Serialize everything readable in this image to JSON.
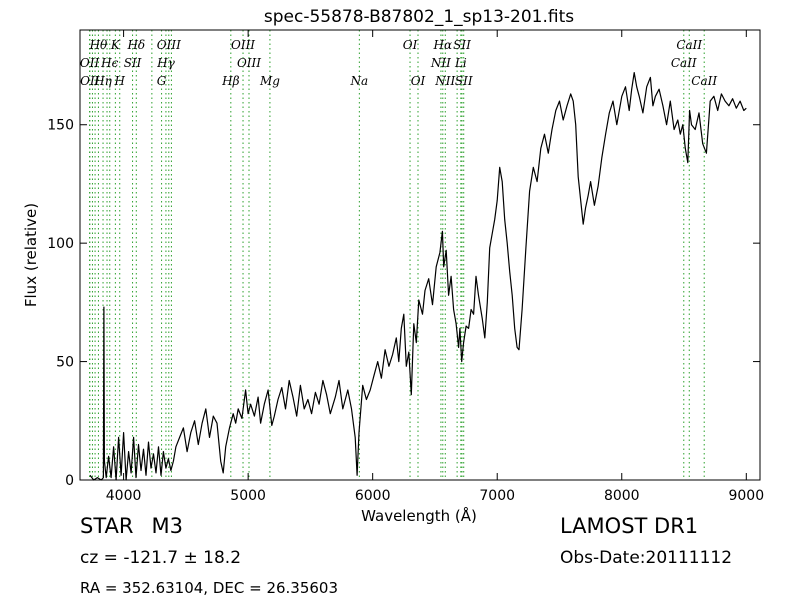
{
  "chart_data": {
    "type": "line",
    "title": "spec-55878-B87802_1_sp13-201.fits",
    "xlabel": "Wavelength (Å)",
    "ylabel": "Flux (relative)",
    "xlim": [
      3650,
      9110
    ],
    "ylim": [
      0,
      190
    ],
    "x_ticks": [
      4000,
      5000,
      6000,
      7000,
      8000,
      9000
    ],
    "y_ticks": [
      0,
      50,
      100,
      150
    ],
    "grid": false,
    "legend": "none",
    "series": [
      {
        "color": "#000000",
        "points": [
          [
            3730,
            2
          ],
          [
            3760,
            0
          ],
          [
            3790,
            1
          ],
          [
            3820,
            0
          ],
          [
            3838,
            1
          ],
          [
            3842,
            73
          ],
          [
            3846,
            8
          ],
          [
            3860,
            1
          ],
          [
            3880,
            10
          ],
          [
            3900,
            1
          ],
          [
            3920,
            14
          ],
          [
            3940,
            0
          ],
          [
            3960,
            18
          ],
          [
            3980,
            2
          ],
          [
            4000,
            20
          ],
          [
            4020,
            0
          ],
          [
            4040,
            12
          ],
          [
            4060,
            3
          ],
          [
            4080,
            18
          ],
          [
            4100,
            1
          ],
          [
            4120,
            15
          ],
          [
            4140,
            4
          ],
          [
            4160,
            13
          ],
          [
            4180,
            2
          ],
          [
            4200,
            16
          ],
          [
            4220,
            5
          ],
          [
            4240,
            11
          ],
          [
            4260,
            3
          ],
          [
            4280,
            14
          ],
          [
            4300,
            2
          ],
          [
            4320,
            12
          ],
          [
            4340,
            5
          ],
          [
            4360,
            9
          ],
          [
            4380,
            4
          ],
          [
            4400,
            8
          ],
          [
            4420,
            14
          ],
          [
            4450,
            18
          ],
          [
            4480,
            22
          ],
          [
            4510,
            12
          ],
          [
            4540,
            20
          ],
          [
            4570,
            25
          ],
          [
            4600,
            15
          ],
          [
            4630,
            24
          ],
          [
            4660,
            30
          ],
          [
            4690,
            18
          ],
          [
            4720,
            27
          ],
          [
            4750,
            24
          ],
          [
            4780,
            8
          ],
          [
            4800,
            3
          ],
          [
            4820,
            14
          ],
          [
            4850,
            22
          ],
          [
            4880,
            28
          ],
          [
            4900,
            24
          ],
          [
            4920,
            30
          ],
          [
            4950,
            26
          ],
          [
            4980,
            38
          ],
          [
            5000,
            28
          ],
          [
            5020,
            32
          ],
          [
            5050,
            27
          ],
          [
            5080,
            35
          ],
          [
            5100,
            24
          ],
          [
            5130,
            32
          ],
          [
            5160,
            38
          ],
          [
            5190,
            23
          ],
          [
            5210,
            27
          ],
          [
            5240,
            34
          ],
          [
            5270,
            39
          ],
          [
            5300,
            30
          ],
          [
            5330,
            42
          ],
          [
            5360,
            35
          ],
          [
            5390,
            27
          ],
          [
            5420,
            40
          ],
          [
            5450,
            30
          ],
          [
            5480,
            34
          ],
          [
            5510,
            28
          ],
          [
            5540,
            37
          ],
          [
            5570,
            32
          ],
          [
            5600,
            42
          ],
          [
            5630,
            36
          ],
          [
            5660,
            28
          ],
          [
            5700,
            35
          ],
          [
            5730,
            42
          ],
          [
            5760,
            30
          ],
          [
            5800,
            38
          ],
          [
            5830,
            30
          ],
          [
            5860,
            18
          ],
          [
            5875,
            2
          ],
          [
            5890,
            20
          ],
          [
            5920,
            40
          ],
          [
            5950,
            34
          ],
          [
            5980,
            38
          ],
          [
            6010,
            44
          ],
          [
            6040,
            50
          ],
          [
            6070,
            43
          ],
          [
            6100,
            55
          ],
          [
            6130,
            48
          ],
          [
            6160,
            53
          ],
          [
            6190,
            60
          ],
          [
            6210,
            50
          ],
          [
            6230,
            64
          ],
          [
            6250,
            70
          ],
          [
            6270,
            48
          ],
          [
            6290,
            54
          ],
          [
            6310,
            36
          ],
          [
            6330,
            66
          ],
          [
            6350,
            58
          ],
          [
            6370,
            76
          ],
          [
            6400,
            70
          ],
          [
            6420,
            80
          ],
          [
            6450,
            85
          ],
          [
            6480,
            74
          ],
          [
            6510,
            90
          ],
          [
            6540,
            96
          ],
          [
            6560,
            105
          ],
          [
            6570,
            90
          ],
          [
            6590,
            97
          ],
          [
            6610,
            78
          ],
          [
            6630,
            86
          ],
          [
            6650,
            72
          ],
          [
            6670,
            66
          ],
          [
            6690,
            56
          ],
          [
            6700,
            64
          ],
          [
            6715,
            50
          ],
          [
            6730,
            58
          ],
          [
            6750,
            65
          ],
          [
            6770,
            64
          ],
          [
            6790,
            72
          ],
          [
            6810,
            70
          ],
          [
            6830,
            86
          ],
          [
            6850,
            78
          ],
          [
            6880,
            68
          ],
          [
            6900,
            60
          ],
          [
            6920,
            75
          ],
          [
            6940,
            98
          ],
          [
            6960,
            104
          ],
          [
            6980,
            110
          ],
          [
            7000,
            118
          ],
          [
            7020,
            132
          ],
          [
            7040,
            126
          ],
          [
            7060,
            110
          ],
          [
            7080,
            100
          ],
          [
            7100,
            88
          ],
          [
            7120,
            78
          ],
          [
            7140,
            64
          ],
          [
            7160,
            56
          ],
          [
            7175,
            55
          ],
          [
            7200,
            72
          ],
          [
            7230,
            98
          ],
          [
            7260,
            122
          ],
          [
            7290,
            132
          ],
          [
            7320,
            126
          ],
          [
            7350,
            140
          ],
          [
            7380,
            146
          ],
          [
            7410,
            138
          ],
          [
            7440,
            148
          ],
          [
            7470,
            156
          ],
          [
            7500,
            160
          ],
          [
            7530,
            152
          ],
          [
            7560,
            158
          ],
          [
            7590,
            163
          ],
          [
            7610,
            160
          ],
          [
            7630,
            150
          ],
          [
            7650,
            128
          ],
          [
            7670,
            118
          ],
          [
            7690,
            108
          ],
          [
            7710,
            115
          ],
          [
            7730,
            120
          ],
          [
            7750,
            126
          ],
          [
            7780,
            116
          ],
          [
            7810,
            124
          ],
          [
            7840,
            136
          ],
          [
            7870,
            146
          ],
          [
            7900,
            155
          ],
          [
            7930,
            160
          ],
          [
            7960,
            150
          ],
          [
            8000,
            162
          ],
          [
            8030,
            166
          ],
          [
            8060,
            156
          ],
          [
            8080,
            165
          ],
          [
            8100,
            172
          ],
          [
            8120,
            166
          ],
          [
            8140,
            162
          ],
          [
            8170,
            155
          ],
          [
            8200,
            166
          ],
          [
            8230,
            170
          ],
          [
            8250,
            158
          ],
          [
            8270,
            162
          ],
          [
            8300,
            165
          ],
          [
            8330,
            158
          ],
          [
            8360,
            150
          ],
          [
            8390,
            160
          ],
          [
            8420,
            148
          ],
          [
            8450,
            152
          ],
          [
            8470,
            146
          ],
          [
            8490,
            150
          ],
          [
            8510,
            140
          ],
          [
            8530,
            134
          ],
          [
            8545,
            156
          ],
          [
            8560,
            150
          ],
          [
            8590,
            148
          ],
          [
            8620,
            155
          ],
          [
            8650,
            142
          ],
          [
            8680,
            138
          ],
          [
            8710,
            160
          ],
          [
            8740,
            162
          ],
          [
            8770,
            156
          ],
          [
            8800,
            163
          ],
          [
            8830,
            160
          ],
          [
            8860,
            158
          ],
          [
            8890,
            161
          ],
          [
            8920,
            157
          ],
          [
            8950,
            160
          ],
          [
            8980,
            156
          ],
          [
            9000,
            157
          ]
        ]
      }
    ],
    "line_color": "#2ca02c",
    "lines": [
      {
        "label": "Hθ",
        "x": 3798,
        "row": 1
      },
      {
        "label": "K",
        "x": 3934,
        "row": 1
      },
      {
        "label": "Hδ",
        "x": 4102,
        "row": 1
      },
      {
        "label": "OIII",
        "x": 4363,
        "row": 1
      },
      {
        "label": "OIII",
        "x": 4959,
        "row": 1
      },
      {
        "label": "OI",
        "x": 6300,
        "row": 1
      },
      {
        "label": "Hα",
        "x": 6563,
        "row": 1
      },
      {
        "label": "SII",
        "x": 6717,
        "row": 1
      },
      {
        "label": "CaII",
        "x": 8542,
        "row": 1
      },
      {
        "label": "OII",
        "x": 3727,
        "row": 2
      },
      {
        "label": "Hϵ",
        "x": 3889,
        "row": 2
      },
      {
        "label": "SII",
        "x": 4072,
        "row": 2
      },
      {
        "label": "Hγ",
        "x": 4340,
        "row": 2
      },
      {
        "label": "OIII",
        "x": 5007,
        "row": 2
      },
      {
        "label": "NII",
        "x": 6548,
        "row": 2
      },
      {
        "label": "Li",
        "x": 6708,
        "row": 2
      },
      {
        "label": "CaII",
        "x": 8498,
        "row": 2
      },
      {
        "label": "OII",
        "x": 3729,
        "row": 3
      },
      {
        "label": "Hη",
        "x": 3835,
        "row": 3
      },
      {
        "label": "H",
        "x": 3969,
        "row": 3
      },
      {
        "label": "G",
        "x": 4305,
        "row": 3
      },
      {
        "label": "Hβ",
        "x": 4861,
        "row": 3
      },
      {
        "label": "Mg",
        "x": 5175,
        "row": 3
      },
      {
        "label": "Na",
        "x": 5893,
        "row": 3
      },
      {
        "label": "OI",
        "x": 6364,
        "row": 3
      },
      {
        "label": "NII",
        "x": 6583,
        "row": 3
      },
      {
        "label": "SII",
        "x": 6731,
        "row": 3
      },
      {
        "label": "CaII",
        "x": 8662,
        "row": 3
      },
      {
        "label": "",
        "x": 3750,
        "row": 0
      },
      {
        "label": "",
        "x": 3771,
        "row": 0
      },
      {
        "label": "",
        "x": 3867,
        "row": 0
      },
      {
        "label": "",
        "x": 4227,
        "row": 0
      },
      {
        "label": "",
        "x": 4384,
        "row": 0
      },
      {
        "label": "",
        "x": 6678,
        "row": 0
      }
    ]
  },
  "info": {
    "class_label": "STAR",
    "subclass": "M3",
    "redshift": "cz = -121.7 ± 18.2",
    "coords": "RA = 352.63104, DEC = 26.35603",
    "survey": "LAMOST DR1",
    "obs_date": "Obs-Date:20111112"
  }
}
